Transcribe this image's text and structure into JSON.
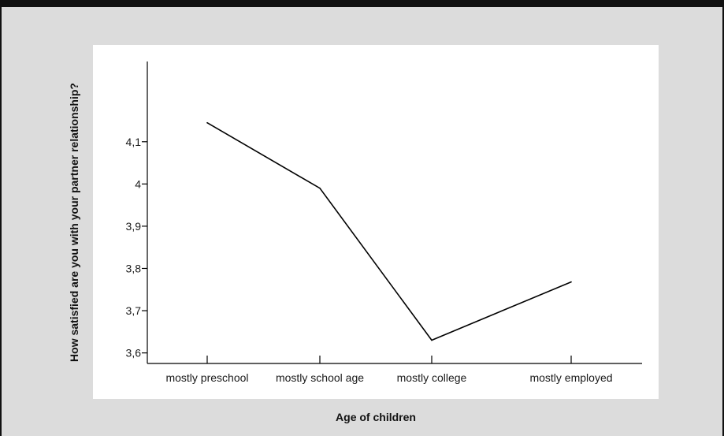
{
  "chart_data": {
    "type": "line",
    "title": "",
    "xlabel": "Age of children",
    "ylabel": "How satisfied are you with your partner relationship?",
    "categories": [
      "mostly preschool",
      "mostly school age",
      "mostly college",
      "mostly employed"
    ],
    "series": [
      {
        "values": [
          4.145,
          3.99,
          3.63,
          3.768
        ]
      }
    ],
    "ylim": [
      3.575,
      4.29
    ],
    "yticks": [
      3.6,
      3.7,
      3.8,
      3.9,
      4,
      4.1
    ],
    "ytick_labels": [
      "3,6",
      "3,7",
      "3,8",
      "3,9",
      "4",
      "4,1"
    ],
    "grid": false,
    "legend": "none",
    "colors": {
      "background": "#dcdcdc",
      "plot_area": "#ffffff",
      "line": "#000000",
      "frame": "#111111"
    }
  }
}
